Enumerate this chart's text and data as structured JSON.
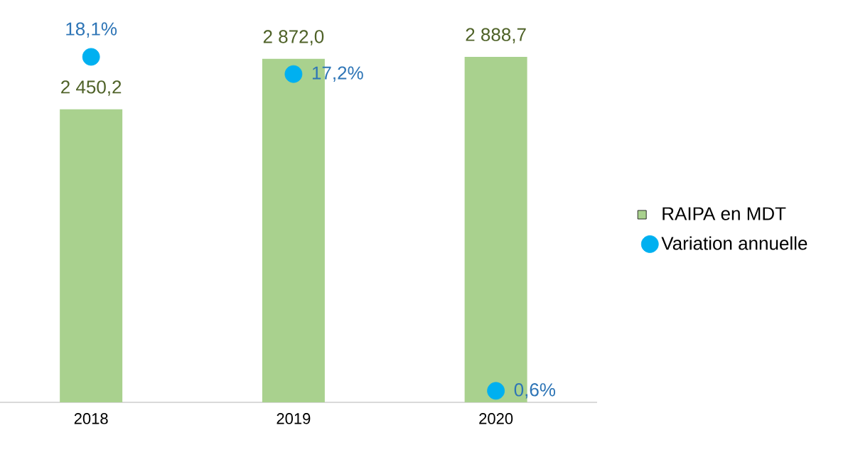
{
  "chart_data": {
    "type": "bar",
    "categories": [
      "2018",
      "2019",
      "2020"
    ],
    "series": [
      {
        "name": "RAIPA en MDT",
        "color": "#a9d18e",
        "values": [
          2450.2,
          2872.0,
          2888.7
        ],
        "value_labels": [
          "2 450,2",
          "2 872,0",
          "2 888,7"
        ]
      },
      {
        "name": "Variation annuelle",
        "type": "scatter",
        "axis": "y2",
        "color": "#00b0f0",
        "values": [
          18.1,
          17.2,
          0.6
        ],
        "value_labels": [
          "18,1%",
          "17,2%",
          "0,6%"
        ]
      }
    ],
    "ylim": [
      0,
      2888.7
    ],
    "y2lim": [
      0,
      18.1
    ],
    "tick_labels": "x",
    "legend": "right",
    "grid": false
  }
}
